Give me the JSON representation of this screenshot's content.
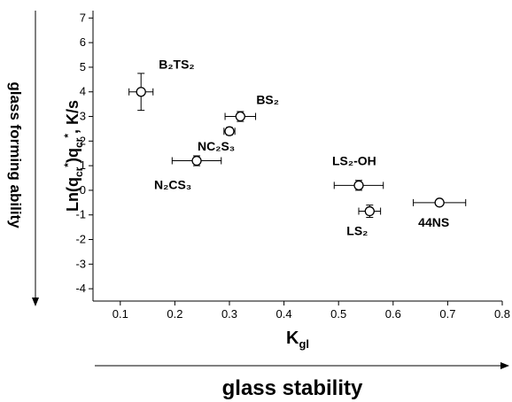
{
  "chart_data": {
    "type": "scatter",
    "x_label_parts": [
      "K",
      "gl"
    ],
    "y_label_parts": [
      "Ln(q",
      "cr",
      "*",
      ")q",
      "cr",
      "*",
      ", K/s"
    ],
    "side_label": "glass forming ability",
    "bottom_label": "glass stability",
    "xlim": [
      0.05,
      0.8
    ],
    "xticks": [
      0.1,
      0.2,
      0.3,
      0.4,
      0.5,
      0.6,
      0.7,
      0.8
    ],
    "ylim": [
      -4.5,
      7.3
    ],
    "yticks": [
      -4,
      -3,
      -2,
      -1,
      0,
      1,
      2,
      3,
      4,
      5,
      6,
      7
    ],
    "series": [
      {
        "color": "#000000",
        "x": [
          0.138,
          0.32,
          0.3,
          0.24,
          0.537,
          0.557,
          0.685
        ],
        "values": [
          4.0,
          3.0,
          2.4,
          1.2,
          0.2,
          -0.85,
          -0.5
        ],
        "xerr": [
          0.022,
          0.028,
          0.01,
          0.045,
          0.045,
          0.02,
          0.048
        ],
        "yerr": [
          0.75,
          0.2,
          0.15,
          0.2,
          0.2,
          0.25,
          0.1
        ],
        "point_labels": [
          "B₂TS₂",
          "BS₂",
          "NC₂S₃",
          "N₂CS₃",
          "LS₂-OH",
          "LS₂",
          "44NS"
        ]
      }
    ]
  }
}
